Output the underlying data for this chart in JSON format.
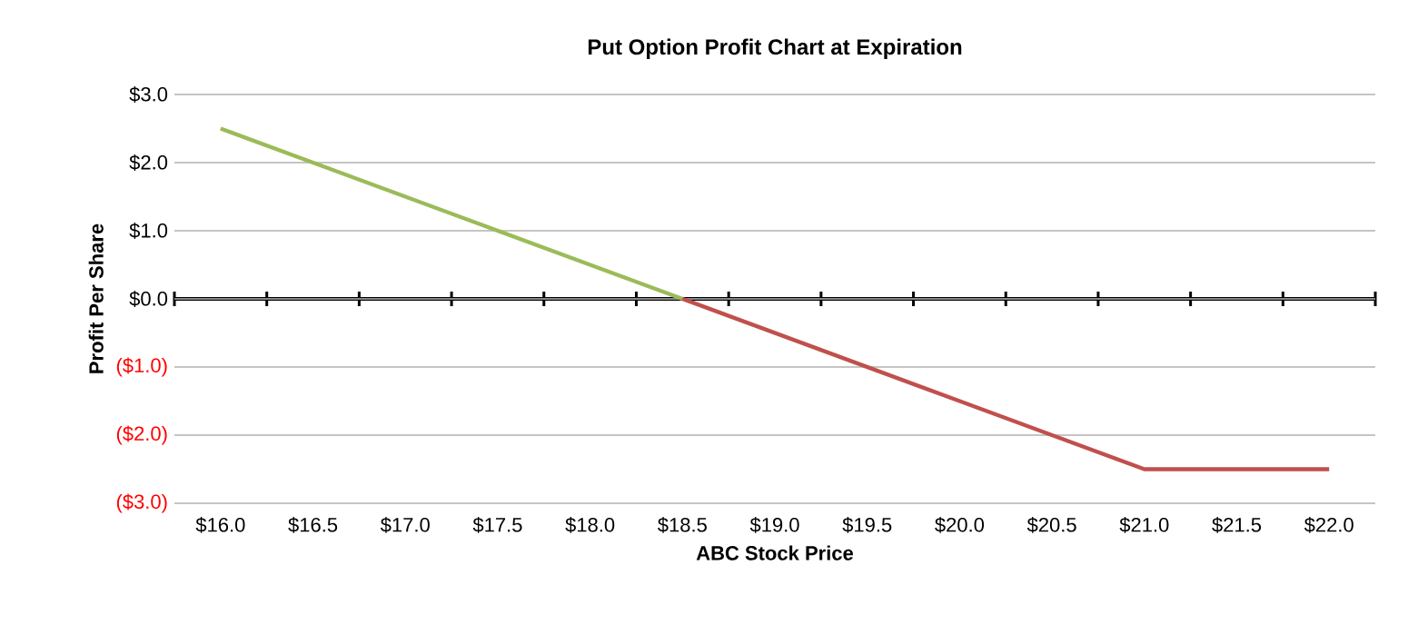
{
  "chart_data": {
    "type": "line",
    "title": "Put Option Profit Chart at Expiration",
    "xlabel": "ABC Stock Price",
    "ylabel": "Profit Per Share",
    "categories": [
      "$16.0",
      "$16.5",
      "$17.0",
      "$17.5",
      "$18.0",
      "$18.5",
      "$19.0",
      "$19.5",
      "$20.0",
      "$20.5",
      "$21.0",
      "$21.5",
      "$22.0"
    ],
    "series": [
      {
        "color": "#9bbb59",
        "values": [
          2.5,
          2.0,
          1.5,
          1.0,
          0.5,
          0.0,
          null,
          null,
          null,
          null,
          null,
          null,
          null
        ]
      },
      {
        "color": "#c0504d",
        "values": [
          null,
          null,
          null,
          null,
          null,
          0.0,
          -0.5,
          -1.0,
          -1.5,
          -2.0,
          -2.5,
          -2.5,
          -2.5
        ]
      }
    ],
    "ylim": [
      -3,
      3
    ],
    "yticks": [
      {
        "value": -3,
        "label": "($3.0)"
      },
      {
        "value": -2,
        "label": "($2.0)"
      },
      {
        "value": -1,
        "label": "($1.0)"
      },
      {
        "value": 0,
        "label": "$0.0"
      },
      {
        "value": 1,
        "label": "$1.0"
      },
      {
        "value": 2,
        "label": "$2.0"
      },
      {
        "value": 3,
        "label": "$3.0"
      }
    ],
    "grid": "y",
    "marker": "none",
    "line_style": "solid"
  }
}
